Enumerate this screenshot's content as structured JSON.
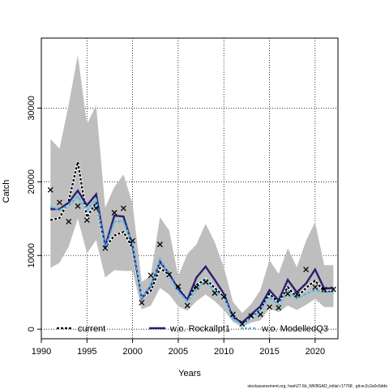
{
  "chart_data": {
    "type": "line",
    "xlabel": "Years",
    "ylabel": "Catch",
    "xlim": [
      1990,
      2022.5
    ],
    "ylim": [
      -1300,
      39500
    ],
    "x_ticks": [
      1990,
      1995,
      2000,
      2005,
      2010,
      2015,
      2020
    ],
    "y_ticks": [
      0,
      10000,
      20000,
      30000
    ],
    "grid": true,
    "legend_position": "bottom",
    "footnote": "stockassessment.org, hash27.6b_WKBGAD_initial r17768 , git:ec2c2a0c6dde",
    "x": [
      1991,
      1992,
      1993,
      1994,
      1995,
      1996,
      1997,
      1998,
      1999,
      2000,
      2001,
      2002,
      2003,
      2004,
      2005,
      2006,
      2007,
      2008,
      2009,
      2010,
      2011,
      2012,
      2013,
      2014,
      2015,
      2016,
      2017,
      2018,
      2019,
      2020,
      2021,
      2022
    ],
    "ci_upper": [
      25800,
      24500,
      30500,
      37200,
      27800,
      30400,
      16500,
      19300,
      21000,
      17000,
      6400,
      7300,
      15200,
      13400,
      7200,
      10200,
      11500,
      14300,
      11800,
      8400,
      3700,
      2200,
      3400,
      5300,
      9400,
      7500,
      11000,
      8400,
      12000,
      14500,
      8700,
      8700
    ],
    "ci_lower": [
      8300,
      9000,
      11200,
      15000,
      10300,
      12100,
      7000,
      8000,
      7900,
      7900,
      2700,
      3200,
      5600,
      4700,
      3100,
      2500,
      3800,
      4700,
      3800,
      2600,
      1000,
      300,
      900,
      1200,
      2800,
      2300,
      3200,
      2600,
      3300,
      4100,
      3000,
      3000
    ],
    "series": [
      {
        "name": "current",
        "color": "#000000",
        "dash": true,
        "values": [
          14800,
          15100,
          17400,
          22700,
          15200,
          17200,
          11100,
          12700,
          13200,
          11000,
          4300,
          5200,
          8300,
          7400,
          5600,
          4000,
          6000,
          6800,
          5600,
          4400,
          1900,
          700,
          1500,
          2700,
          4800,
          3600,
          5700,
          4300,
          5600,
          6600,
          5100,
          5100
        ]
      },
      {
        "name": "w.o. Rockallpt1",
        "color": "#2a1e6e",
        "dash": false,
        "values": [
          16300,
          16300,
          17200,
          18800,
          16800,
          18300,
          11200,
          15400,
          15300,
          11300,
          4200,
          5800,
          9200,
          7500,
          5500,
          4000,
          7000,
          8500,
          6700,
          4800,
          1600,
          900,
          2000,
          3100,
          5300,
          3900,
          6700,
          5000,
          6200,
          8100,
          5500,
          5600
        ]
      },
      {
        "name": "w.o. ModelledQ3",
        "color": "#4fb8e8",
        "dash": true,
        "values": [
          16600,
          16200,
          16800,
          18000,
          16100,
          17600,
          10900,
          14600,
          14600,
          11600,
          4300,
          5700,
          9500,
          7300,
          5100,
          3800,
          5400,
          6700,
          5100,
          4500,
          1400,
          700,
          1400,
          2600,
          4400,
          3300,
          5300,
          4100,
          4800,
          5300,
          5000,
          5000
        ]
      }
    ],
    "observed_points": {
      "x": [
        1991,
        1992,
        1993,
        1994,
        1995,
        1996,
        1997,
        1998,
        1999,
        2000,
        2001,
        2002,
        2003,
        2004,
        2005,
        2006,
        2007,
        2008,
        2009,
        2010,
        2011,
        2012,
        2013,
        2014,
        2015,
        2016,
        2017,
        2018,
        2019,
        2020,
        2021,
        2022
      ],
      "y": [
        18900,
        17200,
        14600,
        16700,
        14800,
        16400,
        11000,
        15800,
        16400,
        12000,
        3600,
        7300,
        11500,
        7400,
        5800,
        3200,
        5700,
        6400,
        4900,
        4400,
        2000,
        700,
        1800,
        2000,
        3000,
        2900,
        4800,
        4700,
        8100,
        5700,
        5400,
        5400
      ]
    }
  }
}
